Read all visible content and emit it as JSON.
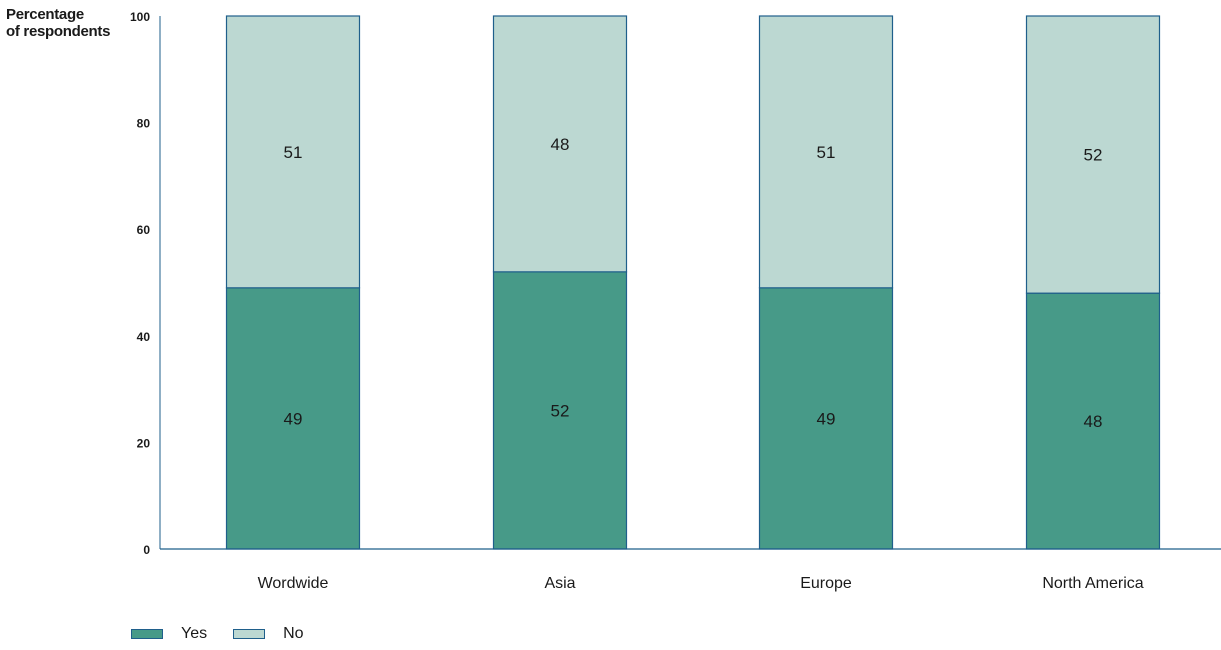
{
  "chart_data": {
    "type": "bar",
    "stacked": true,
    "ylabel": "Percentage of respondents",
    "ylabel_lines": [
      "Percentage",
      "of respondents"
    ],
    "ylim": [
      0,
      100
    ],
    "yticks": [
      0,
      20,
      40,
      60,
      80,
      100
    ],
    "categories": [
      "Wordwide",
      "Asia",
      "Europe",
      "North America"
    ],
    "series": [
      {
        "name": "Yes",
        "values": [
          49,
          52,
          49,
          48
        ],
        "color": "#479a88"
      },
      {
        "name": "No",
        "values": [
          51,
          48,
          51,
          52
        ],
        "color": "#bcd8d2"
      }
    ],
    "bar_border_color": "#1f5f8b",
    "axis_color": "#1f5f8b",
    "grid": false,
    "legend_position": "bottom-left"
  }
}
